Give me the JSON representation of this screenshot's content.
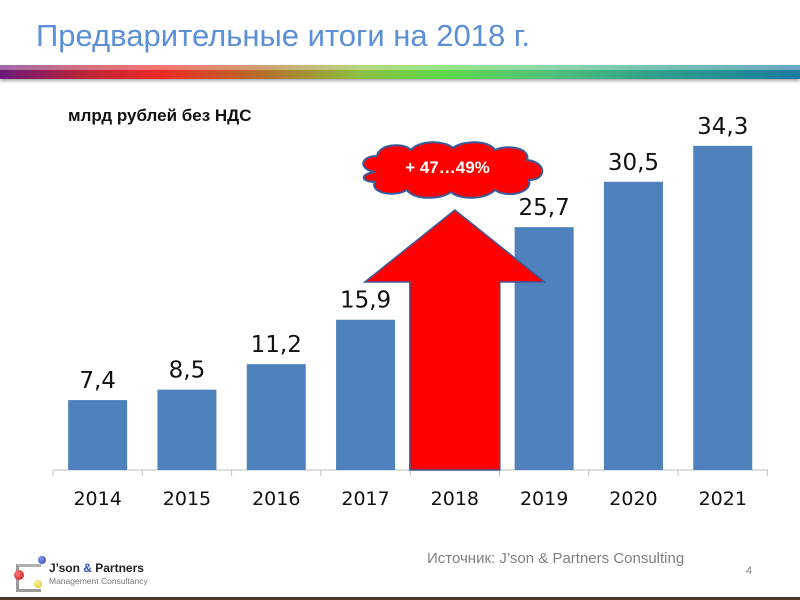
{
  "slide": {
    "title": "Предварительные итоги на 2018 г.",
    "unit_label": "млрд рублей без НДС",
    "source": "Источник: J’son & Partners Consulting",
    "page_number": "4",
    "logo": {
      "name_part1": "J’son ",
      "name_amp": "&",
      "name_part2": " Partners",
      "subtitle": "Management Consultancy"
    },
    "callout": {
      "text": "+ 47…49%",
      "shape": "cloud",
      "fill": "#ff0000"
    },
    "arrow": {
      "target_year": "2018",
      "fill": "#ff0000",
      "stroke": "#3a5a9a"
    }
  },
  "colors": {
    "bar": "#4f81bd",
    "highlight": "#ff0000",
    "title": "#5b8fd6",
    "axis": "#bfbfbf"
  },
  "chart_data": {
    "type": "bar",
    "title": "Предварительные итоги на 2018 г.",
    "ylabel": "млрд рублей без НДС",
    "xlabel": "",
    "categories": [
      "2014",
      "2015",
      "2016",
      "2017",
      "2018",
      "2019",
      "2020",
      "2021"
    ],
    "values": [
      7.4,
      8.5,
      11.2,
      15.9,
      null,
      25.7,
      30.5,
      34.3
    ],
    "data_labels": [
      "7,4",
      "8,5",
      "11,2",
      "15,9",
      "",
      "25,7",
      "30,5",
      "34,3"
    ],
    "annotations": [
      {
        "category": "2018",
        "type": "up-arrow",
        "text": "+ 47…49%"
      }
    ],
    "ylim": [
      0,
      36
    ],
    "grid": false,
    "legend": null
  }
}
